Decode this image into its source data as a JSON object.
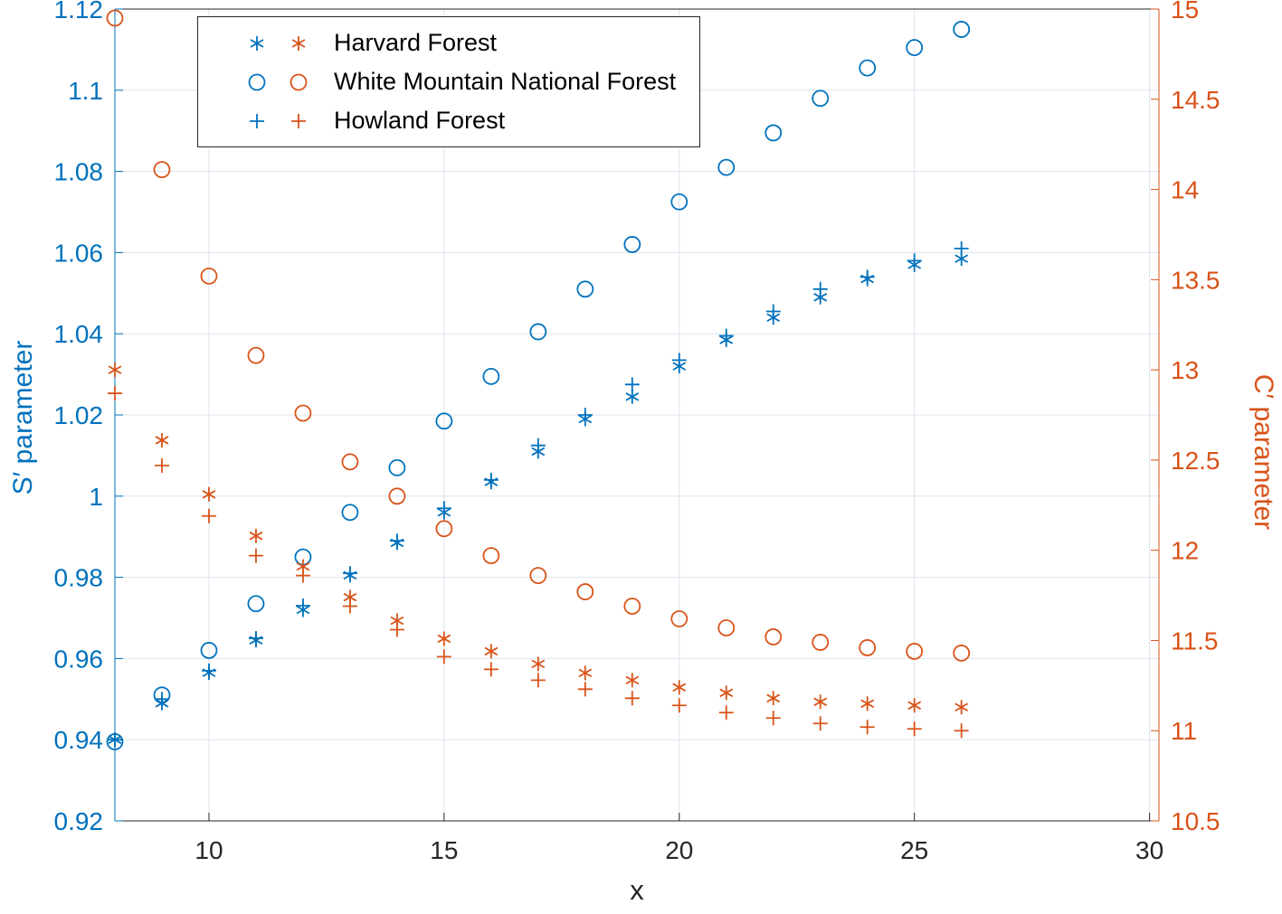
{
  "colors": {
    "blue": "#0072BD",
    "orange": "#D95319",
    "grid": "#dde4ee",
    "axis_dark": "#262626",
    "background": "#ffffff"
  },
  "legend": {
    "items": [
      {
        "label": "Harvard Forest",
        "marker": "asterisk"
      },
      {
        "label": "White Mountain National Forest",
        "marker": "circle"
      },
      {
        "label": "Howland Forest",
        "marker": "plus"
      }
    ]
  },
  "chart_data": {
    "type": "scatter",
    "title": "",
    "xlabel": "x",
    "ylabel_left": "S′ parameter",
    "ylabel_right": "C′ parameter",
    "grid": true,
    "legend_position": "top-left",
    "xlim": [
      8,
      30.2
    ],
    "ylim_left": [
      0.92,
      1.12
    ],
    "ylim_right": [
      10.5,
      15
    ],
    "xticks": [
      10,
      15,
      20,
      25,
      30
    ],
    "xtick_labels": [
      "10",
      "15",
      "20",
      "25",
      "30"
    ],
    "yticks_left": [
      0.92,
      0.94,
      0.96,
      0.98,
      1,
      1.02,
      1.04,
      1.06,
      1.08,
      1.1,
      1.12
    ],
    "ytick_labels_left": [
      "0.92",
      "0.94",
      "0.96",
      "0.98",
      "1",
      "1.02",
      "1.04",
      "1.06",
      "1.08",
      "1.1",
      "1.12"
    ],
    "yticks_right": [
      10.5,
      11,
      11.5,
      12,
      12.5,
      13,
      13.5,
      14,
      14.5,
      15
    ],
    "ytick_labels_right": [
      "10.5",
      "11",
      "11.5",
      "12",
      "12.5",
      "13",
      "13.5",
      "14",
      "14.5",
      "15"
    ],
    "x": [
      8,
      9,
      10,
      11,
      12,
      13,
      14,
      15,
      16,
      17,
      18,
      19,
      20,
      21,
      22,
      23,
      24,
      25,
      26
    ],
    "series": [
      {
        "name": "Harvard Forest",
        "axis": "left",
        "marker": "asterisk",
        "color_key": "blue",
        "values": [
          0.94,
          0.949,
          0.9565,
          0.9645,
          0.972,
          0.9805,
          0.9885,
          0.996,
          1.0035,
          1.011,
          1.019,
          1.0245,
          1.032,
          1.0385,
          1.044,
          1.049,
          1.0535,
          1.057,
          1.0585
        ]
      },
      {
        "name": "White Mountain National Forest",
        "axis": "left",
        "marker": "circle",
        "color_key": "blue",
        "values": [
          0.9395,
          0.951,
          0.962,
          0.9735,
          0.985,
          0.996,
          1.007,
          1.0185,
          1.0295,
          1.0405,
          1.051,
          1.062,
          1.0725,
          1.081,
          1.0895,
          1.098,
          1.1055,
          1.1105,
          1.115
        ]
      },
      {
        "name": "Howland Forest",
        "axis": "left",
        "marker": "plus",
        "color_key": "blue",
        "values": [
          0.94,
          0.95,
          0.957,
          0.965,
          0.973,
          0.981,
          0.989,
          0.997,
          1.004,
          1.0125,
          1.02,
          1.0275,
          1.0335,
          1.0395,
          1.0455,
          1.051,
          1.054,
          1.058,
          1.061
        ]
      },
      {
        "name": "Harvard Forest",
        "axis": "right",
        "marker": "asterisk",
        "color_key": "orange",
        "values": [
          13.0,
          12.61,
          12.31,
          12.08,
          11.91,
          11.74,
          11.61,
          11.51,
          11.44,
          11.37,
          11.32,
          11.28,
          11.24,
          11.21,
          11.18,
          11.16,
          11.15,
          11.14,
          11.13
        ]
      },
      {
        "name": "White Mountain National Forest",
        "axis": "right",
        "marker": "circle",
        "color_key": "orange",
        "values": [
          14.95,
          14.11,
          13.52,
          13.08,
          12.76,
          12.49,
          12.3,
          12.12,
          11.97,
          11.86,
          11.77,
          11.69,
          11.62,
          11.57,
          11.52,
          11.49,
          11.46,
          11.44,
          11.43
        ]
      },
      {
        "name": "Howland Forest",
        "axis": "right",
        "marker": "plus",
        "color_key": "orange",
        "values": [
          12.87,
          12.47,
          12.19,
          11.97,
          11.86,
          11.69,
          11.56,
          11.41,
          11.34,
          11.28,
          11.23,
          11.18,
          11.14,
          11.1,
          11.07,
          11.04,
          11.02,
          11.01,
          11.0
        ]
      }
    ]
  }
}
